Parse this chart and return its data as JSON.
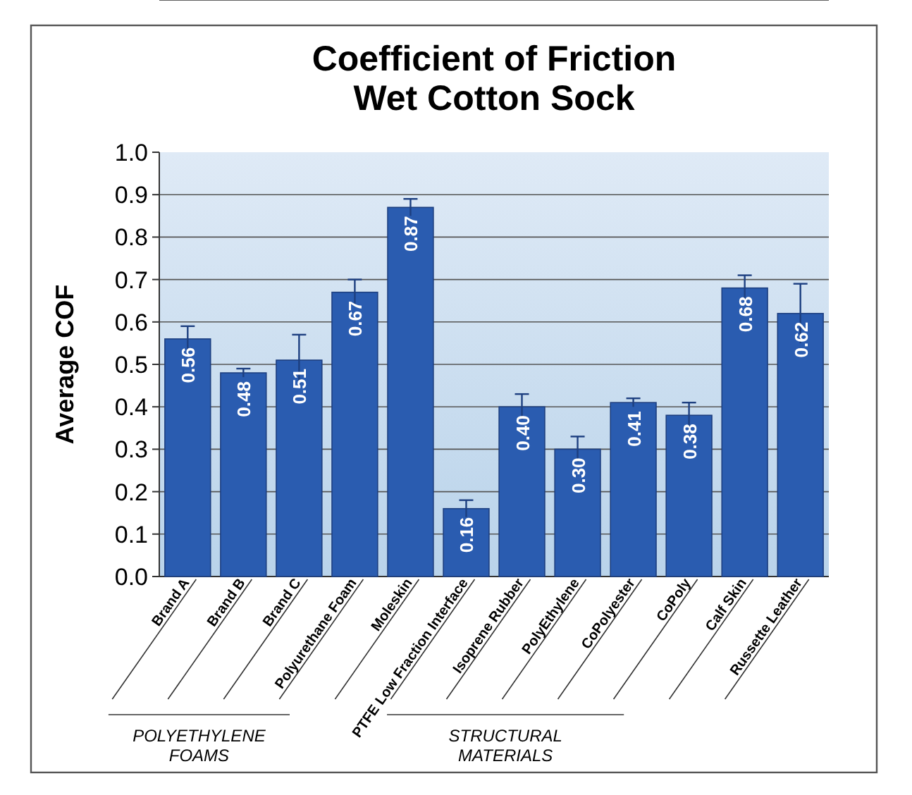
{
  "chart_data": {
    "type": "bar",
    "title": "Coefficient of Friction\nWet Cotton Sock",
    "ylabel": "Average COF",
    "categories": [
      "Brand A",
      "Brand B",
      "Brand C",
      "Polyurethane Foam",
      "Moleskin",
      "PTFE Low Fraction Interface",
      "Isoprene Rubber",
      "PolyEthylene",
      "CoPolyester",
      "CoPoly",
      "Calf Skin",
      "Russette Leather"
    ],
    "values": [
      0.56,
      0.48,
      0.51,
      0.67,
      0.87,
      0.16,
      0.4,
      0.3,
      0.41,
      0.38,
      0.68,
      0.62
    ],
    "errors": [
      0.03,
      0.01,
      0.06,
      0.03,
      0.02,
      0.02,
      0.03,
      0.03,
      0.01,
      0.03,
      0.03,
      0.07
    ],
    "color": "#2a5cb0",
    "grid": "y",
    "value_labels": [
      "0.56",
      "0.48",
      "0.51",
      "0.67",
      "0.87",
      "0.16",
      "0.40",
      "0.30",
      "0.41",
      "0.38",
      "0.68",
      "0.62"
    ],
    "ylim": [
      0,
      1
    ],
    "yticks": [
      {
        "value": 0,
        "label": "0.0"
      },
      0.1,
      0.2,
      0.3,
      0.4,
      0.5,
      0.6,
      0.7,
      0.8,
      0.9,
      {
        "value": 1,
        "label": "1.0"
      }
    ],
    "annotations": [
      "POLYETHYLENE\nFOAMS",
      "STRUCTURAL\nMATERIALS"
    ]
  }
}
